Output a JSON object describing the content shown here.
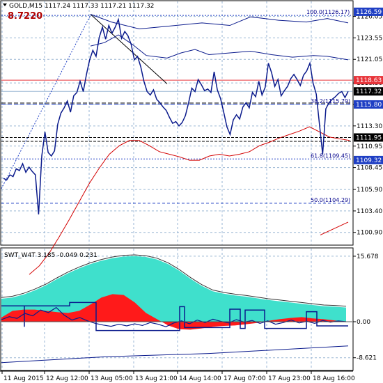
{
  "header": {
    "symbol_line": "GOLD,M15  1117.24 1117.33 1117.21 1117.32",
    "indicator_value": "8.7220"
  },
  "main_axis": {
    "ylim": [
      1099.5,
      1127.8
    ],
    "ticks": [
      "1126.05",
      "1123.55",
      "1121.05",
      "1118.30",
      "1115.80",
      "1113.30",
      "1110.95",
      "1108.45",
      "1105.90",
      "1103.40",
      "1100.90"
    ],
    "tick_values": [
      1126.05,
      1123.55,
      1121.05,
      1118.3,
      1115.8,
      1113.3,
      1110.95,
      1108.45,
      1105.9,
      1103.4,
      1100.9
    ]
  },
  "price_labels": [
    {
      "text": "1126.59",
      "value": 1126.59,
      "bg": "#1f3fc4",
      "fg": "#ffffff"
    },
    {
      "text": "1118.63",
      "value": 1118.63,
      "bg": "#e8343a",
      "fg": "#ffffff"
    },
    {
      "text": "1117.32",
      "value": 1117.32,
      "bg": "#000000",
      "fg": "#ffffff"
    },
    {
      "text": "1115.80",
      "value": 1115.8,
      "bg": "#1f3fc4",
      "fg": "#ffffff"
    },
    {
      "text": "1111.95",
      "value": 1111.95,
      "bg": "#000000",
      "fg": "#ffffff"
    },
    {
      "text": "1109.32",
      "value": 1109.32,
      "bg": "#1f3fc4",
      "fg": "#ffffff"
    }
  ],
  "fib_labels": [
    {
      "text": "100.0(1126.17)",
      "value": 1126.17
    },
    {
      "text": "61.8(1109.45)",
      "value": 1109.45
    },
    {
      "text": "50.0(1104.29)",
      "value": 1104.29
    },
    {
      "text": "38.2(1115.79)",
      "value": 1115.79
    }
  ],
  "sub": {
    "title": "SWT_W4T 3.185 -0.049 0.231",
    "ticks": [
      "15.678",
      "0.00",
      "-8.621"
    ],
    "tick_values": [
      15.678,
      0,
      -8.621
    ],
    "ylim": [
      -11.5,
      17.5
    ]
  },
  "x_axis": {
    "labels": [
      "11 Aug 2015",
      "12 Aug 12:00",
      "13 Aug 05:00",
      "13 Aug 21:00",
      "14 Aug 14:00",
      "17 Aug 07:00",
      "17 Aug 23:00",
      "18 Aug 16:00"
    ]
  },
  "colors": {
    "price": "#0a1a8c",
    "red_line": "#d40000",
    "grid": "#9ab6d4",
    "cyan_fill": "#3fe0cc",
    "red_fill": "#ff1a1a"
  },
  "chart_data": {
    "type": "line",
    "title": "GOLD,M15",
    "series_price": [
      1107.2,
      1107.0,
      1107.6,
      1107.4,
      1108.3,
      1108.1,
      1108.9,
      1107.9,
      1108.5,
      1108.0,
      1107.6,
      1103.0,
      1109.8,
      1112.6,
      1110.2,
      1109.8,
      1110.4,
      1113.5,
      1114.8,
      1115.4,
      1116.2,
      1114.9,
      1116.8,
      1117.2,
      1118.5,
      1117.3,
      1119.3,
      1121.0,
      1122.1,
      1121.4,
      1123.6,
      1124.8,
      1123.4,
      1125.0,
      1124.1,
      1124.8,
      1125.7,
      1123.5,
      1124.3,
      1123.8,
      1122.8,
      1121.0,
      1121.4,
      1120.2,
      1118.5,
      1117.3,
      1116.9,
      1117.5,
      1116.4,
      1116.0,
      1115.5,
      1115.1,
      1114.3,
      1113.6,
      1113.8,
      1113.3,
      1113.7,
      1114.5,
      1116.0,
      1117.7,
      1117.3,
      1118.7,
      1118.1,
      1117.4,
      1117.6,
      1117.2,
      1119.6,
      1117.5,
      1116.5,
      1114.9,
      1113.2,
      1112.3,
      1114.0,
      1114.6,
      1114.1,
      1115.5,
      1116.0,
      1115.4,
      1117.2,
      1116.7,
      1118.5,
      1116.9,
      1117.8,
      1120.6,
      1119.5,
      1117.9,
      1118.7,
      1116.8,
      1117.4,
      1117.9,
      1118.8,
      1119.3,
      1118.7,
      1118.0,
      1119.2,
      1119.7,
      1120.6,
      1118.3,
      1117.0,
      1113.5,
      1110.0,
      1115.3,
      1116.0,
      1116.4,
      1116.7,
      1117.1,
      1117.3,
      1116.6,
      1117.32
    ],
    "series_red": [
      1096.0,
      1097.0,
      1098.5,
      1100.4,
      1102.4,
      1104.5,
      1106.6,
      1108.4,
      1110.0,
      1111.0,
      1111.6,
      1111.6,
      1111.0,
      1110.3,
      1110.0,
      1109.7,
      1109.3,
      1109.3,
      1109.8,
      1110.0,
      1109.8,
      1110.0,
      1110.3,
      1111.0,
      1111.4,
      1111.9,
      1112.3,
      1112.7,
      1113.2,
      1112.6,
      1112.0,
      1111.8,
      1111.6
    ],
    "sub_series_cyan": [
      5.5,
      5.8,
      6.5,
      7.5,
      8.7,
      10.2,
      11.6,
      12.8,
      13.8,
      14.6,
      15.2,
      15.6,
      15.7,
      15.5,
      14.9,
      13.8,
      12.2,
      10.3,
      8.6,
      7.3,
      6.7,
      6.3,
      6.0,
      5.6,
      5.2,
      4.9,
      4.6,
      4.3,
      4.0,
      3.7,
      3.6,
      3.4
    ],
    "sub_series_red": [
      1.0,
      2.6,
      2.9,
      2.9,
      2.6,
      2.3,
      2.1,
      2.6,
      4.1,
      5.8,
      6.6,
      6.4,
      4.6,
      2.1,
      0.6,
      -0.9,
      -1.8,
      -1.9,
      -1.6,
      -1.2,
      -1.0,
      -0.9,
      -0.6,
      -0.3,
      0.2,
      0.6,
      0.9,
      1.1,
      0.8,
      0.6,
      0.3,
      0.0
    ]
  }
}
